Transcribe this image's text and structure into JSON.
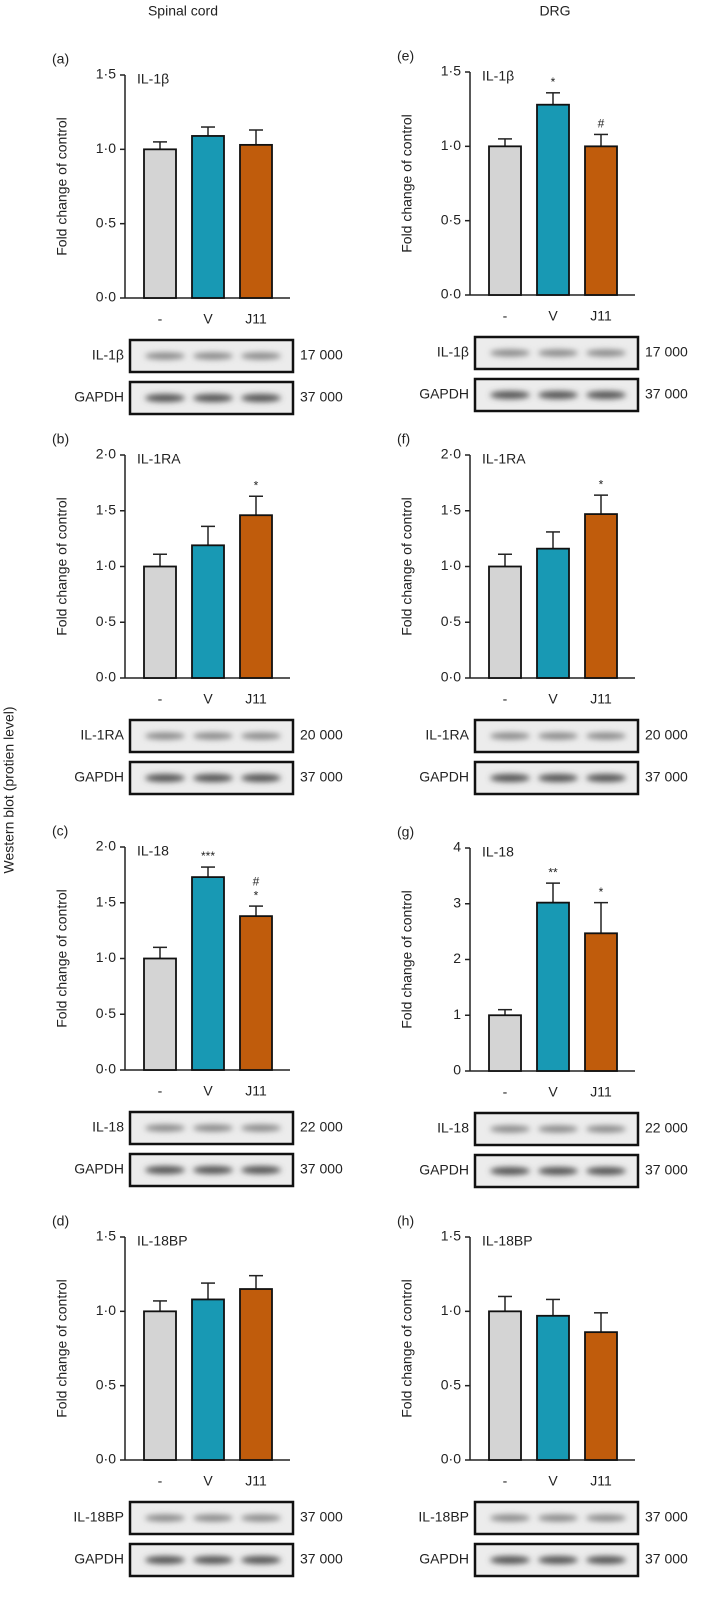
{
  "headers": [
    "Spinal cord",
    "DRG"
  ],
  "side_label": "Western blot (protien level)",
  "chart_data": [
    {
      "type": "bar",
      "panel": "(a)",
      "title": "IL-1β",
      "y_label": "Fold change of control",
      "categories": [
        "-",
        "V",
        "J11"
      ],
      "values": [
        1.0,
        1.09,
        1.03
      ],
      "errors": [
        0.05,
        0.06,
        0.1
      ],
      "colors": [
        "#d4d4d4",
        "#1899b4",
        "#c05c0c"
      ],
      "significance": [
        null,
        null,
        null
      ],
      "ylim": [
        0,
        1.5
      ],
      "yticks": [
        {
          "value": 0,
          "label": "0·0"
        },
        {
          "value": 0.5,
          "label": "0·5"
        },
        {
          "value": 1,
          "label": "1·0"
        },
        {
          "value": 1.5,
          "label": "1·5"
        }
      ],
      "blots": [
        {
          "label": "IL-1β",
          "mw": "17 000"
        },
        {
          "label": "GAPDH",
          "mw": "37 000"
        }
      ]
    },
    {
      "type": "bar",
      "panel": "(b)",
      "title": "IL-1RA",
      "y_label": "Fold change of control",
      "categories": [
        "-",
        "V",
        "J11"
      ],
      "values": [
        1.0,
        1.19,
        1.46
      ],
      "errors": [
        0.11,
        0.17,
        0.17
      ],
      "colors": [
        "#d4d4d4",
        "#1899b4",
        "#c05c0c"
      ],
      "significance": [
        null,
        null,
        [
          "*"
        ]
      ],
      "ylim": [
        0,
        2
      ],
      "yticks": [
        {
          "value": 0,
          "label": "0·0"
        },
        {
          "value": 0.5,
          "label": "0·5"
        },
        {
          "value": 1,
          "label": "1·0"
        },
        {
          "value": 1.5,
          "label": "1·5"
        },
        {
          "value": 2,
          "label": "2·0"
        }
      ],
      "blots": [
        {
          "label": "IL-1RA",
          "mw": "20 000"
        },
        {
          "label": "GAPDH",
          "mw": "37 000"
        }
      ]
    },
    {
      "type": "bar",
      "panel": "(c)",
      "title": "IL-18",
      "y_label": "Fold change of control",
      "categories": [
        "-",
        "V",
        "J11"
      ],
      "values": [
        1.0,
        1.73,
        1.38
      ],
      "errors": [
        0.1,
        0.09,
        0.09
      ],
      "colors": [
        "#d4d4d4",
        "#1899b4",
        "#c05c0c"
      ],
      "significance": [
        null,
        [
          "***"
        ],
        [
          "#",
          "*"
        ]
      ],
      "ylim": [
        0,
        2
      ],
      "yticks": [
        {
          "value": 0,
          "label": "0·0"
        },
        {
          "value": 0.5,
          "label": "0·5"
        },
        {
          "value": 1,
          "label": "1·0"
        },
        {
          "value": 1.5,
          "label": "1·5"
        },
        {
          "value": 2,
          "label": "2·0"
        }
      ],
      "blots": [
        {
          "label": "IL-18",
          "mw": "22 000"
        },
        {
          "label": "GAPDH",
          "mw": "37 000"
        }
      ]
    },
    {
      "type": "bar",
      "panel": "(d)",
      "title": "IL-18BP",
      "y_label": "Fold change of control",
      "categories": [
        "-",
        "V",
        "J11"
      ],
      "values": [
        1.0,
        1.08,
        1.15
      ],
      "errors": [
        0.07,
        0.11,
        0.09
      ],
      "colors": [
        "#d4d4d4",
        "#1899b4",
        "#c05c0c"
      ],
      "significance": [
        null,
        null,
        null
      ],
      "ylim": [
        0,
        1.5
      ],
      "yticks": [
        {
          "value": 0,
          "label": "0·0"
        },
        {
          "value": 0.5,
          "label": "0·5"
        },
        {
          "value": 1,
          "label": "1·0"
        },
        {
          "value": 1.5,
          "label": "1·5"
        }
      ],
      "blots": [
        {
          "label": "IL-18BP",
          "mw": "37 000"
        },
        {
          "label": "GAPDH",
          "mw": "37 000"
        }
      ]
    },
    {
      "type": "bar",
      "panel": "(e)",
      "title": "IL-1β",
      "y_label": "Fold change of control",
      "categories": [
        "-",
        "V",
        "J11"
      ],
      "values": [
        1.0,
        1.28,
        1.0
      ],
      "errors": [
        0.05,
        0.08,
        0.08
      ],
      "colors": [
        "#d4d4d4",
        "#1899b4",
        "#c05c0c"
      ],
      "significance": [
        null,
        [
          "*"
        ],
        [
          "#"
        ]
      ],
      "ylim": [
        0,
        1.5
      ],
      "yticks": [
        {
          "value": 0,
          "label": "0·0"
        },
        {
          "value": 0.5,
          "label": "0·5"
        },
        {
          "value": 1,
          "label": "1·0"
        },
        {
          "value": 1.5,
          "label": "1·5"
        }
      ],
      "blots": [
        {
          "label": "IL-1β",
          "mw": "17 000"
        },
        {
          "label": "GAPDH",
          "mw": "37 000"
        }
      ]
    },
    {
      "type": "bar",
      "panel": "(f)",
      "title": "IL-1RA",
      "y_label": "Fold change of control",
      "categories": [
        "-",
        "V",
        "J11"
      ],
      "values": [
        1.0,
        1.16,
        1.47
      ],
      "errors": [
        0.11,
        0.15,
        0.17
      ],
      "colors": [
        "#d4d4d4",
        "#1899b4",
        "#c05c0c"
      ],
      "significance": [
        null,
        null,
        [
          "*"
        ]
      ],
      "ylim": [
        0,
        2
      ],
      "yticks": [
        {
          "value": 0,
          "label": "0·0"
        },
        {
          "value": 0.5,
          "label": "0·5"
        },
        {
          "value": 1,
          "label": "1·0"
        },
        {
          "value": 1.5,
          "label": "1·5"
        },
        {
          "value": 2,
          "label": "2·0"
        }
      ],
      "blots": [
        {
          "label": "IL-1RA",
          "mw": "20 000"
        },
        {
          "label": "GAPDH",
          "mw": "37 000"
        }
      ]
    },
    {
      "type": "bar",
      "panel": "(g)",
      "title": "IL-18",
      "y_label": "Fold change of control",
      "categories": [
        "-",
        "V",
        "J11"
      ],
      "values": [
        1.0,
        3.02,
        2.47
      ],
      "errors": [
        0.1,
        0.35,
        0.55
      ],
      "colors": [
        "#d4d4d4",
        "#1899b4",
        "#c05c0c"
      ],
      "significance": [
        null,
        [
          "**"
        ],
        [
          "*"
        ]
      ],
      "ylim": [
        0,
        4
      ],
      "yticks": [
        0,
        1,
        2,
        3,
        4
      ],
      "blots": [
        {
          "label": "IL-18",
          "mw": "22 000"
        },
        {
          "label": "GAPDH",
          "mw": "37 000"
        }
      ]
    },
    {
      "type": "bar",
      "panel": "(h)",
      "title": "IL-18BP",
      "y_label": "Fold change of control",
      "categories": [
        "-",
        "V",
        "J11"
      ],
      "values": [
        1.0,
        0.97,
        0.86
      ],
      "errors": [
        0.1,
        0.11,
        0.13
      ],
      "colors": [
        "#d4d4d4",
        "#1899b4",
        "#c05c0c"
      ],
      "significance": [
        null,
        null,
        null
      ],
      "ylim": [
        0,
        1.5
      ],
      "yticks": [
        {
          "value": 0,
          "label": "0·0"
        },
        {
          "value": 0.5,
          "label": "0·5"
        },
        {
          "value": 1,
          "label": "1·0"
        },
        {
          "value": 1.5,
          "label": "1·5"
        }
      ],
      "blots": [
        {
          "label": "IL-18BP",
          "mw": "37 000"
        },
        {
          "label": "GAPDH",
          "mw": "37 000"
        }
      ]
    }
  ]
}
